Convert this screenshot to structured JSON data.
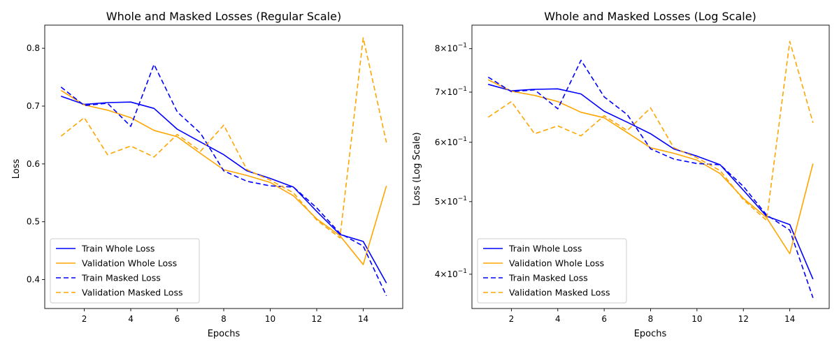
{
  "chart_data": [
    {
      "type": "line",
      "title": "Whole and Masked Losses (Regular Scale)",
      "xlabel": "Epochs",
      "ylabel": "Loss",
      "yscale": "linear",
      "xlim": [
        0.3,
        15.7
      ],
      "ylim": [
        0.35,
        0.84
      ],
      "xticks": [
        2,
        4,
        6,
        8,
        10,
        12,
        14
      ],
      "xtick_labels": [
        "2",
        "4",
        "6",
        "8",
        "10",
        "12",
        "14"
      ],
      "yticks": [
        0.4,
        0.5,
        0.6,
        0.7,
        0.8
      ],
      "ytick_labels": [
        "0.4",
        "0.5",
        "0.6",
        "0.7",
        "0.8"
      ],
      "grid": false,
      "legend_position": "lower-left",
      "x": [
        1,
        2,
        3,
        4,
        5,
        6,
        7,
        8,
        9,
        10,
        11,
        12,
        13,
        14,
        15
      ],
      "series": [
        {
          "name": "Train Whole Loss",
          "color": "#0000ff",
          "dash": "solid",
          "values": [
            0.717,
            0.703,
            0.706,
            0.707,
            0.696,
            0.66,
            0.638,
            0.616,
            0.588,
            0.575,
            0.56,
            0.518,
            0.478,
            0.466,
            0.394
          ]
        },
        {
          "name": "Validation Whole Loss",
          "color": "#ffa500",
          "dash": "solid",
          "values": [
            0.727,
            0.702,
            0.693,
            0.68,
            0.658,
            0.647,
            0.618,
            0.59,
            0.58,
            0.568,
            0.545,
            0.505,
            0.476,
            0.426,
            0.562
          ]
        },
        {
          "name": "Train Masked Loss",
          "color": "#0000ff",
          "dash": "dashed",
          "values": [
            0.733,
            0.701,
            0.705,
            0.665,
            0.772,
            0.69,
            0.653,
            0.588,
            0.57,
            0.562,
            0.56,
            0.524,
            0.48,
            0.458,
            0.372
          ]
        },
        {
          "name": "Validation Masked Loss",
          "color": "#ffa500",
          "dash": "dashed",
          "values": [
            0.648,
            0.68,
            0.616,
            0.631,
            0.612,
            0.651,
            0.622,
            0.667,
            0.59,
            0.572,
            0.55,
            0.503,
            0.472,
            0.818,
            0.637
          ]
        }
      ]
    },
    {
      "type": "line",
      "title": "Whole and Masked Losses (Log Scale)",
      "xlabel": "Epochs",
      "ylabel": "Loss (Log Scale)",
      "yscale": "log",
      "xlim": [
        0.3,
        15.7
      ],
      "ylim": [
        0.36,
        0.86
      ],
      "xticks": [
        2,
        4,
        6,
        8,
        10,
        12,
        14
      ],
      "xtick_labels": [
        "2",
        "4",
        "6",
        "8",
        "10",
        "12",
        "14"
      ],
      "yticks": [
        0.4,
        0.5,
        0.6,
        0.7,
        0.8
      ],
      "ytick_base": "10",
      "ytick_mantissas": [
        "4",
        "5",
        "6",
        "7",
        "8"
      ],
      "ytick_exponent": "−1",
      "grid": false,
      "legend_position": "lower-left",
      "x": [
        1,
        2,
        3,
        4,
        5,
        6,
        7,
        8,
        9,
        10,
        11,
        12,
        13,
        14,
        15
      ],
      "series": [
        {
          "name": "Train Whole Loss",
          "color": "#0000ff",
          "dash": "solid",
          "values": [
            0.717,
            0.703,
            0.706,
            0.707,
            0.696,
            0.66,
            0.638,
            0.616,
            0.588,
            0.575,
            0.56,
            0.518,
            0.478,
            0.466,
            0.394
          ]
        },
        {
          "name": "Validation Whole Loss",
          "color": "#ffa500",
          "dash": "solid",
          "values": [
            0.727,
            0.702,
            0.693,
            0.68,
            0.658,
            0.647,
            0.618,
            0.59,
            0.58,
            0.568,
            0.545,
            0.505,
            0.476,
            0.426,
            0.562
          ]
        },
        {
          "name": "Train Masked Loss",
          "color": "#0000ff",
          "dash": "dashed",
          "values": [
            0.733,
            0.701,
            0.705,
            0.665,
            0.772,
            0.69,
            0.653,
            0.588,
            0.57,
            0.562,
            0.56,
            0.524,
            0.48,
            0.458,
            0.372
          ]
        },
        {
          "name": "Validation Masked Loss",
          "color": "#ffa500",
          "dash": "dashed",
          "values": [
            0.648,
            0.68,
            0.616,
            0.631,
            0.612,
            0.651,
            0.622,
            0.667,
            0.59,
            0.572,
            0.55,
            0.503,
            0.472,
            0.818,
            0.637
          ]
        }
      ]
    }
  ]
}
